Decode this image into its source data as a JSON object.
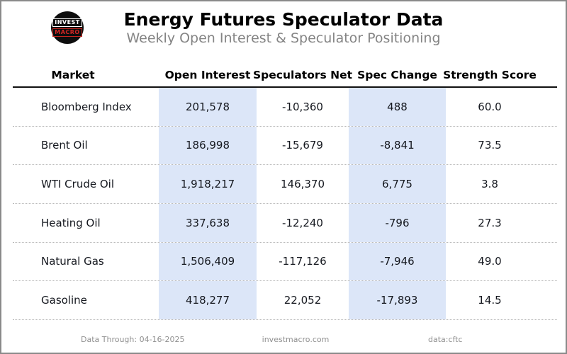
{
  "header": {
    "logo": {
      "line1": "INVEST",
      "line2": "MACRO"
    }
  },
  "chart_data": {
    "type": "table",
    "title": "Energy Futures Speculator Data",
    "subtitle": "Weekly Open Interest & Speculator Positioning",
    "columns": [
      "Market",
      "Open Interest",
      "Speculators Net",
      "Spec Change",
      "Strength Score"
    ],
    "highlighted_columns": [
      "Open Interest",
      "Spec Change"
    ],
    "rows": [
      {
        "market": "Bloomberg Index",
        "open_interest": "201,578",
        "speculators_net": "-10,360",
        "spec_change": "488",
        "strength_score": "60.0"
      },
      {
        "market": "Brent Oil",
        "open_interest": "186,998",
        "speculators_net": "-15,679",
        "spec_change": "-8,841",
        "strength_score": "73.5"
      },
      {
        "market": "WTI Crude Oil",
        "open_interest": "1,918,217",
        "speculators_net": "146,370",
        "spec_change": "6,775",
        "strength_score": "3.8"
      },
      {
        "market": "Heating Oil",
        "open_interest": "337,638",
        "speculators_net": "-12,240",
        "spec_change": "-796",
        "strength_score": "27.3"
      },
      {
        "market": "Natural Gas",
        "open_interest": "1,506,409",
        "speculators_net": "-117,126",
        "spec_change": "-7,946",
        "strength_score": "49.0"
      },
      {
        "market": "Gasoline",
        "open_interest": "418,277",
        "speculators_net": "22,052",
        "spec_change": "-17,893",
        "strength_score": "14.5"
      }
    ]
  },
  "footer": {
    "data_through": "Data Through: 04-16-2025",
    "website": "investmacro.com",
    "source": "data:cftc"
  },
  "colors": {
    "highlight_band": "#dce6f8",
    "logo_red": "#d02523",
    "subtitle_gray": "#848484",
    "footer_gray": "#909090",
    "frame_border": "#8a8a8a"
  }
}
